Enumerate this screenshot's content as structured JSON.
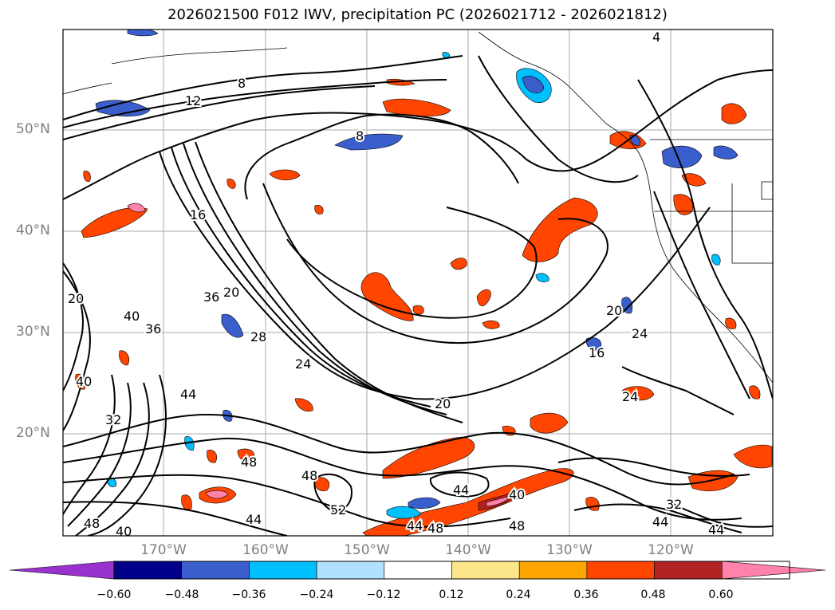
{
  "title": "2026021500 F012 IWV, precipitation PC (2026021712 - 2026021812)",
  "map": {
    "lat_labels": [
      "50°N",
      "40°N",
      "30°N",
      "20°N"
    ],
    "lon_labels": [
      "170°W",
      "160°W",
      "150°W",
      "140°W",
      "130°W",
      "120°W"
    ],
    "contour_labels": [
      "4",
      "8",
      "12",
      "16",
      "20",
      "24",
      "28",
      "32",
      "36",
      "40",
      "44",
      "48",
      "52",
      "8",
      "16",
      "20",
      "24",
      "36",
      "40",
      "44",
      "48",
      "44",
      "40",
      "48",
      "20",
      "24",
      "20",
      "32",
      "44",
      "44",
      "48",
      "40",
      "44",
      "48"
    ]
  },
  "colorbar": {
    "colors": [
      "#9932cc",
      "#00008b",
      "#3a5fcd",
      "#00bfff",
      "#b0e2ff",
      "#ffffff",
      "#fde68a",
      "#ffa500",
      "#ff4500",
      "#b22222",
      "#ff82ab"
    ],
    "ticks": [
      "−0.60",
      "−0.48",
      "−0.36",
      "−0.24",
      "−0.12",
      "0.12",
      "0.24",
      "0.36",
      "0.48",
      "0.60"
    ]
  }
}
